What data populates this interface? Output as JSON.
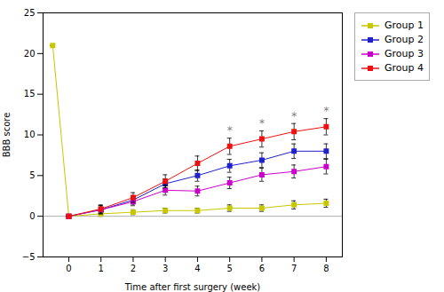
{
  "chart_data": {
    "type": "line",
    "xlabel": "Time after first surgery (week)",
    "ylabel": "BBB score",
    "xlim": [
      -0.8,
      8.5
    ],
    "ylim": [
      -5,
      25
    ],
    "xticks": [
      0,
      1,
      2,
      3,
      4,
      5,
      6,
      7,
      8
    ],
    "yticks": [
      -5,
      0,
      5,
      10,
      15,
      20,
      25
    ],
    "grid": false,
    "legend": "right",
    "series": [
      {
        "name": "Group 1",
        "color": "#c8c800",
        "marker": "square",
        "x": [
          -0.5,
          0,
          1,
          2,
          3,
          4,
          5,
          6,
          7,
          8
        ],
        "values": [
          21.0,
          0.0,
          0.3,
          0.5,
          0.7,
          0.7,
          1.0,
          1.0,
          1.4,
          1.6
        ],
        "yerr": [
          0.0,
          0.0,
          0.3,
          0.3,
          0.3,
          0.3,
          0.4,
          0.4,
          0.5,
          0.5
        ]
      },
      {
        "name": "Group 2",
        "color": "#2020cc",
        "marker": "square",
        "x": [
          0,
          1,
          2,
          3,
          4,
          5,
          6,
          7,
          8
        ],
        "values": [
          0.0,
          0.8,
          2.0,
          4.0,
          5.0,
          6.2,
          6.9,
          8.0,
          8.0
        ],
        "yerr": [
          0.0,
          0.5,
          0.5,
          0.6,
          0.7,
          0.8,
          0.9,
          0.9,
          0.9
        ]
      },
      {
        "name": "Group 3",
        "color": "#cc00cc",
        "marker": "square",
        "x": [
          0,
          1,
          2,
          3,
          4,
          5,
          6,
          7,
          8
        ],
        "values": [
          0.0,
          0.8,
          1.8,
          3.2,
          3.1,
          4.1,
          5.1,
          5.5,
          6.1
        ],
        "yerr": [
          0.0,
          0.5,
          0.5,
          0.6,
          0.6,
          0.7,
          0.8,
          0.8,
          0.9
        ]
      },
      {
        "name": "Group 4",
        "color": "#ee1010",
        "marker": "square",
        "x": [
          0,
          1,
          2,
          3,
          4,
          5,
          6,
          7,
          8
        ],
        "values": [
          0.0,
          0.9,
          2.3,
          4.3,
          6.5,
          8.6,
          9.5,
          10.4,
          11.0
        ],
        "yerr": [
          0.0,
          0.5,
          0.6,
          0.8,
          0.9,
          1.0,
          1.0,
          1.0,
          1.0
        ]
      }
    ],
    "reference_lines": [
      {
        "y": 0,
        "color": "#999999"
      }
    ],
    "annotations": [
      {
        "text": "*",
        "x": 5,
        "y": 10.1,
        "color": "gray"
      },
      {
        "text": "*",
        "x": 6,
        "y": 11.0,
        "color": "gray"
      },
      {
        "text": "*",
        "x": 7,
        "y": 11.9,
        "color": "gray"
      },
      {
        "text": "*",
        "x": 8,
        "y": 12.5,
        "color": "gray"
      }
    ]
  }
}
